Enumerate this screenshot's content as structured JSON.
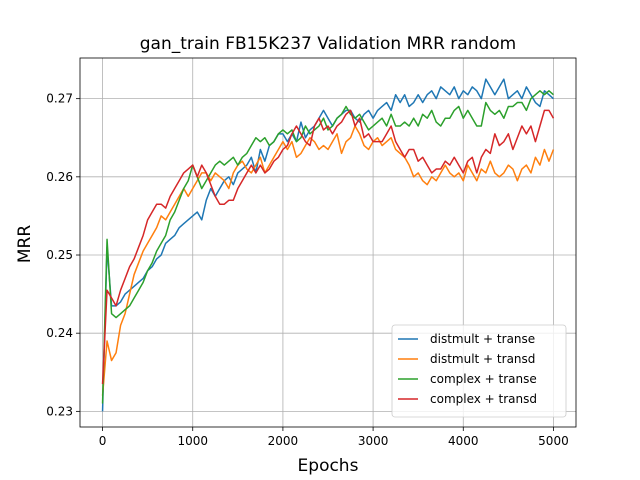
{
  "chart_data": {
    "type": "line",
    "title": "gan_train FB15K237 Validation MRR random",
    "xlabel": "Epochs",
    "ylabel": "MRR",
    "xlim": [
      -250,
      5250
    ],
    "ylim": [
      0.228,
      0.2752
    ],
    "xticks": [
      0,
      1000,
      2000,
      3000,
      4000,
      5000
    ],
    "yticks": [
      0.23,
      0.24,
      0.25,
      0.26,
      0.27
    ],
    "ytick_labels": [
      "0.23",
      "0.24",
      "0.25",
      "0.26",
      "0.27"
    ],
    "xtick_labels": [
      "0",
      "1000",
      "2000",
      "3000",
      "4000",
      "5000"
    ],
    "grid": true,
    "legend_position": "lower-right",
    "x": [
      0,
      50,
      100,
      150,
      200,
      250,
      300,
      350,
      400,
      450,
      500,
      550,
      600,
      650,
      700,
      750,
      800,
      850,
      900,
      950,
      1000,
      1050,
      1100,
      1150,
      1200,
      1250,
      1300,
      1350,
      1400,
      1450,
      1500,
      1550,
      1600,
      1650,
      1700,
      1750,
      1800,
      1850,
      1900,
      1950,
      2000,
      2050,
      2100,
      2150,
      2200,
      2250,
      2300,
      2350,
      2400,
      2450,
      2500,
      2550,
      2600,
      2650,
      2700,
      2750,
      2800,
      2850,
      2900,
      2950,
      3000,
      3050,
      3100,
      3150,
      3200,
      3250,
      3300,
      3350,
      3400,
      3450,
      3500,
      3550,
      3600,
      3650,
      3700,
      3750,
      3800,
      3850,
      3900,
      3950,
      4000,
      4050,
      4100,
      4150,
      4200,
      4250,
      4300,
      4350,
      4400,
      4450,
      4500,
      4550,
      4600,
      4650,
      4700,
      4750,
      4800,
      4850,
      4900,
      4950,
      5000
    ],
    "series": [
      {
        "name": "distmult + transe",
        "color": "#1f77b4",
        "values": [
          0.23,
          0.251,
          0.2435,
          0.2435,
          0.244,
          0.245,
          0.2455,
          0.246,
          0.2465,
          0.247,
          0.248,
          0.2485,
          0.2495,
          0.25,
          0.2515,
          0.252,
          0.2525,
          0.2535,
          0.254,
          0.2545,
          0.255,
          0.2555,
          0.2545,
          0.257,
          0.2585,
          0.2575,
          0.2585,
          0.2595,
          0.26,
          0.259,
          0.2605,
          0.261,
          0.2615,
          0.2625,
          0.2605,
          0.2635,
          0.262,
          0.264,
          0.2645,
          0.2655,
          0.2655,
          0.2645,
          0.2655,
          0.2645,
          0.267,
          0.265,
          0.266,
          0.2665,
          0.2675,
          0.2685,
          0.2675,
          0.2665,
          0.2675,
          0.268,
          0.2685,
          0.2685,
          0.2675,
          0.267,
          0.268,
          0.2685,
          0.2675,
          0.2685,
          0.269,
          0.2695,
          0.2685,
          0.2705,
          0.2695,
          0.2705,
          0.269,
          0.2695,
          0.2705,
          0.2695,
          0.2705,
          0.271,
          0.27,
          0.2715,
          0.271,
          0.2705,
          0.2715,
          0.27,
          0.271,
          0.2705,
          0.2715,
          0.271,
          0.27,
          0.2725,
          0.2715,
          0.2705,
          0.2715,
          0.2725,
          0.27,
          0.2705,
          0.271,
          0.27,
          0.2715,
          0.2705,
          0.2695,
          0.269,
          0.271,
          0.2705,
          0.27
        ]
      },
      {
        "name": "distmult + transd",
        "color": "#ff7f0e",
        "values": [
          0.232,
          0.239,
          0.2365,
          0.2375,
          0.241,
          0.2425,
          0.245,
          0.2475,
          0.249,
          0.2505,
          0.2515,
          0.2525,
          0.2535,
          0.255,
          0.2545,
          0.2555,
          0.2565,
          0.2575,
          0.2585,
          0.2575,
          0.2585,
          0.2595,
          0.2605,
          0.2605,
          0.2595,
          0.2605,
          0.26,
          0.2595,
          0.2585,
          0.2605,
          0.2615,
          0.262,
          0.261,
          0.2605,
          0.2615,
          0.2625,
          0.2605,
          0.2615,
          0.2625,
          0.2635,
          0.2645,
          0.2635,
          0.2645,
          0.2625,
          0.263,
          0.264,
          0.265,
          0.2645,
          0.2635,
          0.264,
          0.2635,
          0.2645,
          0.2655,
          0.263,
          0.2645,
          0.265,
          0.2665,
          0.2655,
          0.264,
          0.2635,
          0.2645,
          0.265,
          0.264,
          0.2645,
          0.265,
          0.2635,
          0.263,
          0.2625,
          0.2615,
          0.26,
          0.2605,
          0.2595,
          0.259,
          0.26,
          0.2595,
          0.2605,
          0.2615,
          0.2605,
          0.26,
          0.2605,
          0.2595,
          0.2615,
          0.2605,
          0.2595,
          0.261,
          0.2605,
          0.262,
          0.2605,
          0.26,
          0.2605,
          0.2615,
          0.261,
          0.2595,
          0.261,
          0.2615,
          0.2605,
          0.2625,
          0.2615,
          0.2635,
          0.262,
          0.2635
        ]
      },
      {
        "name": "complex + transe",
        "color": "#2ca02c",
        "values": [
          0.231,
          0.252,
          0.2425,
          0.242,
          0.2425,
          0.243,
          0.2435,
          0.2445,
          0.2455,
          0.2465,
          0.248,
          0.249,
          0.2505,
          0.2515,
          0.2525,
          0.2545,
          0.2555,
          0.257,
          0.2585,
          0.2595,
          0.2615,
          0.26,
          0.2585,
          0.2595,
          0.2605,
          0.2615,
          0.262,
          0.2615,
          0.262,
          0.2625,
          0.2615,
          0.2625,
          0.263,
          0.264,
          0.265,
          0.2645,
          0.265,
          0.264,
          0.2645,
          0.2655,
          0.266,
          0.2655,
          0.266,
          0.2645,
          0.265,
          0.2665,
          0.2655,
          0.266,
          0.2665,
          0.2675,
          0.266,
          0.2665,
          0.2675,
          0.268,
          0.269,
          0.268,
          0.2675,
          0.268,
          0.267,
          0.266,
          0.2665,
          0.267,
          0.2675,
          0.2665,
          0.268,
          0.2665,
          0.2665,
          0.267,
          0.2665,
          0.2675,
          0.2665,
          0.268,
          0.2675,
          0.2685,
          0.267,
          0.2665,
          0.2675,
          0.2675,
          0.2685,
          0.269,
          0.2675,
          0.2685,
          0.2675,
          0.2665,
          0.2665,
          0.2695,
          0.2685,
          0.268,
          0.2685,
          0.2675,
          0.269,
          0.269,
          0.2695,
          0.2695,
          0.2685,
          0.27,
          0.2705,
          0.271,
          0.2705,
          0.271,
          0.2705
        ]
      },
      {
        "name": "complex + transd",
        "color": "#d62728",
        "values": [
          0.2335,
          0.2455,
          0.2445,
          0.2435,
          0.2455,
          0.247,
          0.2485,
          0.2495,
          0.251,
          0.2525,
          0.2545,
          0.2555,
          0.2565,
          0.2565,
          0.256,
          0.2575,
          0.2585,
          0.2595,
          0.2605,
          0.261,
          0.2615,
          0.26,
          0.2615,
          0.2605,
          0.259,
          0.2575,
          0.2565,
          0.2565,
          0.257,
          0.257,
          0.2585,
          0.2595,
          0.2605,
          0.2615,
          0.2605,
          0.2615,
          0.2605,
          0.261,
          0.262,
          0.2625,
          0.2635,
          0.264,
          0.2655,
          0.2665,
          0.2655,
          0.2645,
          0.264,
          0.2665,
          0.2675,
          0.266,
          0.2665,
          0.2655,
          0.2665,
          0.267,
          0.268,
          0.2685,
          0.2665,
          0.2675,
          0.265,
          0.2655,
          0.2645,
          0.2645,
          0.2645,
          0.2655,
          0.2665,
          0.2645,
          0.2635,
          0.2625,
          0.2635,
          0.2635,
          0.262,
          0.2625,
          0.2615,
          0.2605,
          0.261,
          0.261,
          0.262,
          0.2615,
          0.2625,
          0.2615,
          0.2605,
          0.262,
          0.2625,
          0.2605,
          0.2625,
          0.2635,
          0.263,
          0.2655,
          0.264,
          0.2645,
          0.2655,
          0.2635,
          0.265,
          0.2665,
          0.2655,
          0.2665,
          0.2645,
          0.2665,
          0.2685,
          0.2685,
          0.2675
        ]
      }
    ]
  }
}
